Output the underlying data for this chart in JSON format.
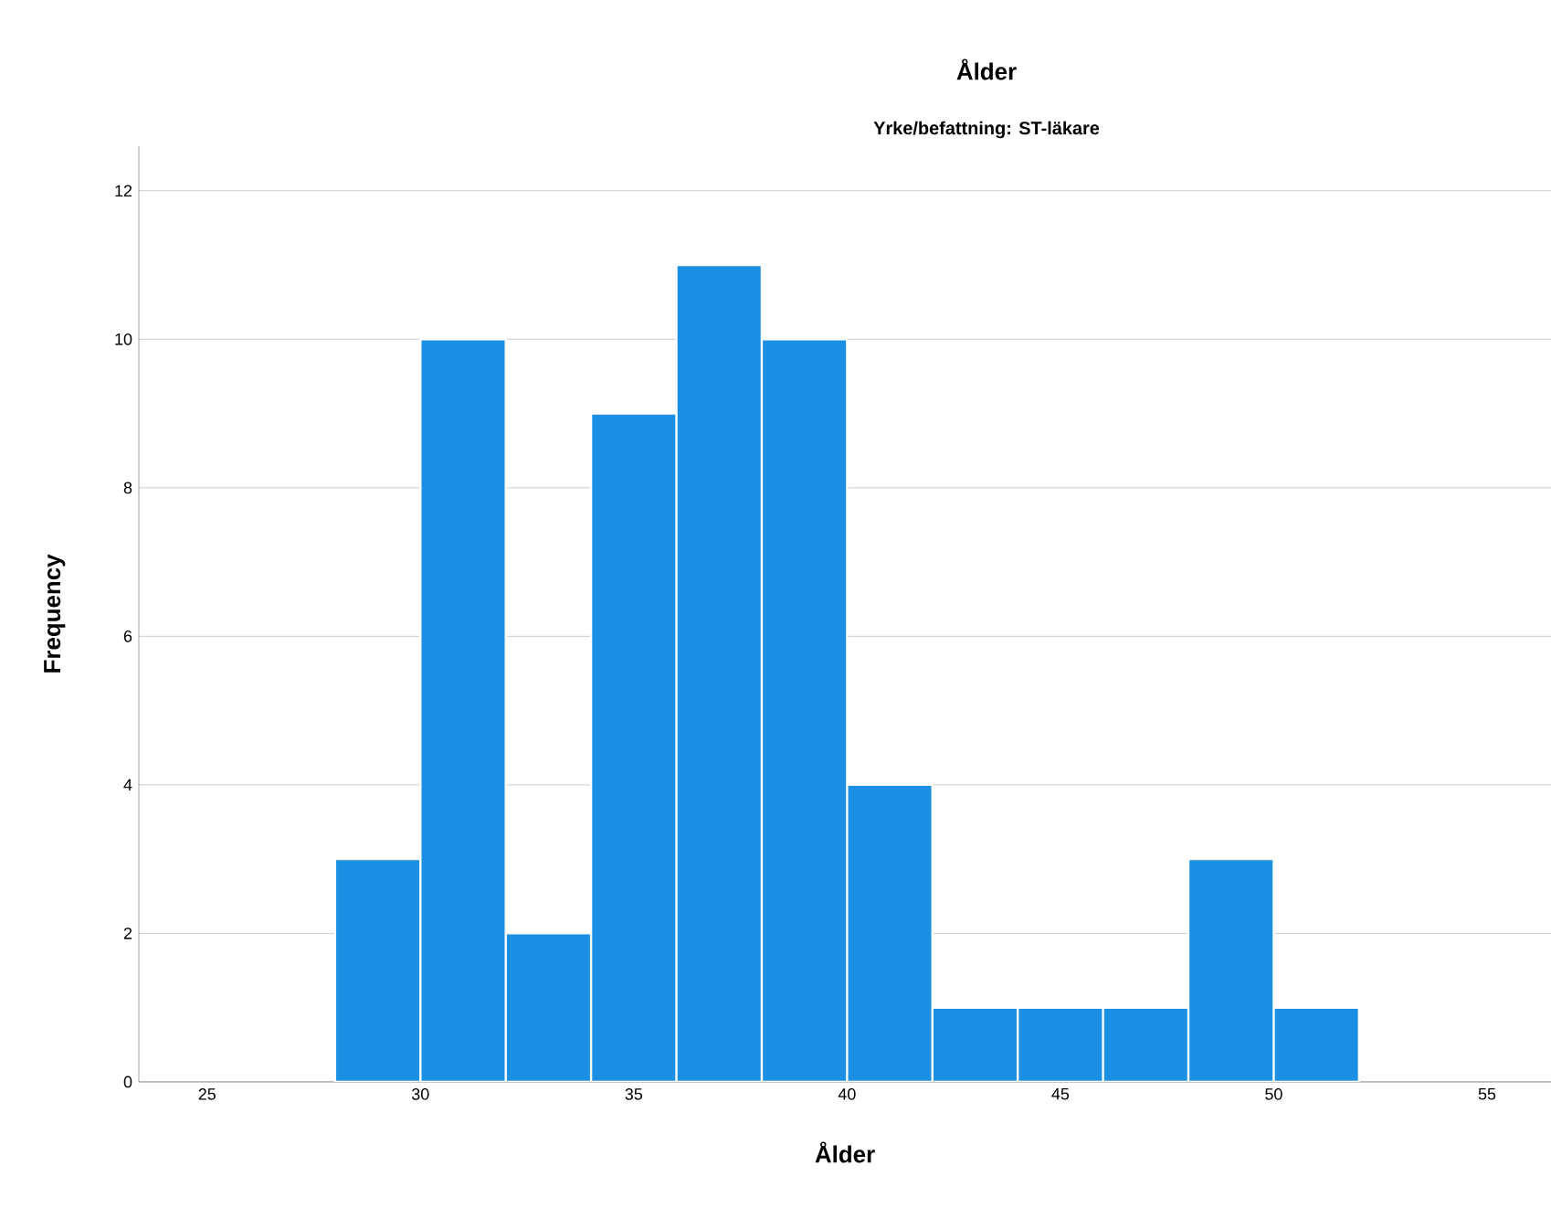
{
  "chart_data": {
    "type": "histogram",
    "title": "Ålder",
    "subtitle": "Yrke/befattning: ST-läkare",
    "xlabel": "Ålder",
    "ylabel": "Frequency",
    "bins": [
      28,
      30,
      32,
      34,
      36,
      38,
      40,
      42,
      44,
      46,
      48,
      50,
      52
    ],
    "values": [
      3,
      10,
      2,
      9,
      11,
      10,
      4,
      1,
      1,
      1,
      3,
      1
    ],
    "color": "#1a8fe3",
    "xlim": [
      23.4,
      56.5
    ],
    "ylim": [
      0,
      12.6
    ],
    "xticks": [
      25,
      30,
      35,
      40,
      45,
      50,
      55
    ],
    "yticks": [
      0,
      2,
      4,
      6,
      8,
      10,
      12
    ],
    "grid": "y"
  }
}
